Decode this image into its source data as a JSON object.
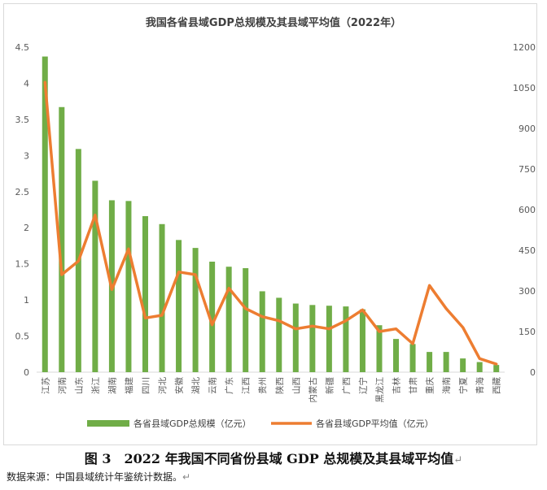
{
  "caption": {
    "text": "图 3　2022 年我国不同省份县域 GDP 总规模及其县域平均值",
    "return_mark": "↵"
  },
  "source": {
    "text": "数据来源：中国县域统计年鉴统计数据。",
    "return_mark": "↵"
  },
  "colors": {
    "bar": "#70ad47",
    "line": "#ed7d31",
    "axis": "#d9d9d9",
    "text": "#595959"
  },
  "chart_data": {
    "type": "bar",
    "title": "我国各省县域GDP总规模及其县域平均值（2022年）",
    "categories": [
      "江苏",
      "河南",
      "山东",
      "浙江",
      "湖南",
      "福建",
      "四川",
      "河北",
      "安徽",
      "湖北",
      "云南",
      "广东",
      "江西",
      "贵州",
      "陕西",
      "山西",
      "内蒙古",
      "新疆",
      "广西",
      "辽宁",
      "黑龙江",
      "吉林",
      "甘肃",
      "重庆",
      "海南",
      "宁夏",
      "青海",
      "西藏"
    ],
    "series": [
      {
        "name": "各省县域GDP总规模（亿元）",
        "type": "bar",
        "axis": "left",
        "values": [
          4.37,
          3.67,
          3.09,
          2.65,
          2.38,
          2.37,
          2.16,
          2.05,
          1.83,
          1.72,
          1.53,
          1.46,
          1.44,
          1.12,
          1.03,
          0.95,
          0.93,
          0.92,
          0.91,
          0.87,
          0.65,
          0.46,
          0.39,
          0.28,
          0.28,
          0.19,
          0.14,
          0.1
        ]
      },
      {
        "name": "各省县域GDP平均值（亿元）",
        "type": "line",
        "axis": "right",
        "values": [
          1070,
          360,
          410,
          580,
          305,
          455,
          200,
          210,
          370,
          360,
          175,
          310,
          235,
          205,
          190,
          160,
          170,
          160,
          190,
          230,
          150,
          160,
          105,
          320,
          235,
          165,
          50,
          30
        ]
      }
    ],
    "y_left": {
      "min": 0,
      "max": 4.5,
      "ticks": [
        "0",
        "0.5",
        "1",
        "1.5",
        "2",
        "2.5",
        "3",
        "3.5",
        "4",
        "4.5"
      ]
    },
    "y_right": {
      "min": 0,
      "max": 1200,
      "ticks": [
        "0",
        "150",
        "300",
        "450",
        "600",
        "750",
        "900",
        "1050",
        "1200"
      ]
    },
    "grid": false,
    "legend_position": "bottom"
  }
}
